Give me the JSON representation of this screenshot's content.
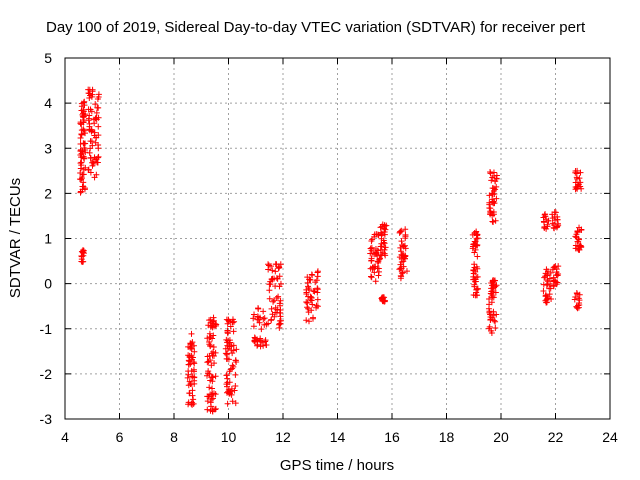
{
  "chart_data": {
    "type": "scatter",
    "title": "Day 100 of 2019, Sidereal Day-to-day VTEC variation (SDTVAR) for receiver pert",
    "xlabel": "GPS time / hours",
    "ylabel": "SDTVAR / TECUs",
    "xlim": [
      4,
      24
    ],
    "ylim": [
      -3,
      5
    ],
    "xticks": [
      4,
      6,
      8,
      10,
      12,
      14,
      16,
      18,
      20,
      22,
      24
    ],
    "yticks": [
      -3,
      -2,
      -1,
      0,
      1,
      2,
      3,
      4,
      5
    ],
    "grid": true,
    "marker": "+",
    "color": "#ff0000",
    "clusters": [
      {
        "x": [
          4.55,
          4.75
        ],
        "y": [
          2.0,
          4.05
        ]
      },
      {
        "x": [
          4.6,
          4.7
        ],
        "y": [
          0.45,
          0.75
        ]
      },
      {
        "x": [
          4.85,
          5.25
        ],
        "y": [
          2.35,
          4.35
        ]
      },
      {
        "x": [
          8.5,
          8.75
        ],
        "y": [
          -2.7,
          -1.1
        ]
      },
      {
        "x": [
          9.2,
          9.55
        ],
        "y": [
          -2.85,
          -0.75
        ]
      },
      {
        "x": [
          9.9,
          10.3
        ],
        "y": [
          -2.75,
          -0.75
        ]
      },
      {
        "x": [
          10.9,
          11.4
        ],
        "y": [
          -1.4,
          -0.5
        ]
      },
      {
        "x": [
          11.45,
          11.95
        ],
        "y": [
          -1.0,
          0.45
        ]
      },
      {
        "x": [
          12.85,
          13.3
        ],
        "y": [
          -0.85,
          0.3
        ]
      },
      {
        "x": [
          15.2,
          15.55
        ],
        "y": [
          0.0,
          1.1
        ]
      },
      {
        "x": [
          15.55,
          15.8
        ],
        "y": [
          0.55,
          1.35
        ]
      },
      {
        "x": [
          15.6,
          15.75
        ],
        "y": [
          -0.4,
          -0.3
        ]
      },
      {
        "x": [
          16.25,
          16.55
        ],
        "y": [
          0.1,
          1.25
        ]
      },
      {
        "x": [
          18.95,
          19.15
        ],
        "y": [
          -0.3,
          1.2
        ]
      },
      {
        "x": [
          19.55,
          19.85
        ],
        "y": [
          1.35,
          2.5
        ]
      },
      {
        "x": [
          19.55,
          19.85
        ],
        "y": [
          -1.1,
          0.15
        ]
      },
      {
        "x": [
          21.55,
          21.85
        ],
        "y": [
          -0.45,
          0.35
        ]
      },
      {
        "x": [
          21.55,
          21.75
        ],
        "y": [
          1.2,
          1.55
        ]
      },
      {
        "x": [
          21.85,
          22.1
        ],
        "y": [
          1.2,
          1.6
        ]
      },
      {
        "x": [
          21.9,
          22.1
        ],
        "y": [
          -0.1,
          0.4
        ]
      },
      {
        "x": [
          22.7,
          22.95
        ],
        "y": [
          2.05,
          2.5
        ]
      },
      {
        "x": [
          22.7,
          22.95
        ],
        "y": [
          0.65,
          1.25
        ]
      },
      {
        "x": [
          22.7,
          22.9
        ],
        "y": [
          -0.55,
          -0.2
        ]
      }
    ]
  }
}
